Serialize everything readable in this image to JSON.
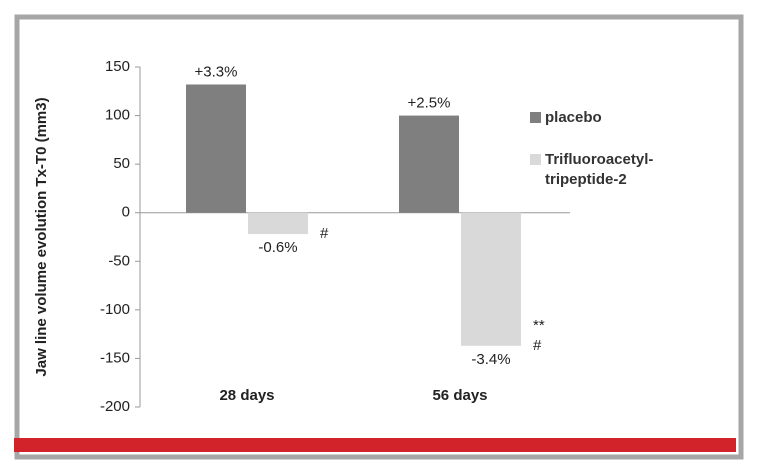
{
  "chart_data": {
    "type": "bar",
    "y_label": "Jaw line volume evolution Tx-T0 (mm3)",
    "categories": [
      "28 days",
      "56 days"
    ],
    "series": [
      {
        "name": "placebo",
        "color": "#7f7f7f",
        "values": [
          132,
          100
        ],
        "annotations": [
          "+3.3%",
          "+2.5%"
        ]
      },
      {
        "name": "Trifluoroacetyl-tripeptide-2",
        "color": "#d9d9d9",
        "values": [
          -22,
          -137
        ],
        "annotations": [
          "-0.6%",
          "-3.4%"
        ],
        "significance": [
          [
            "#"
          ],
          [
            "**",
            "#"
          ]
        ]
      }
    ],
    "ylim": [
      -200,
      150
    ],
    "yticks": [
      -200,
      -150,
      -100,
      -50,
      0,
      50,
      100,
      150
    ],
    "grid": false
  }
}
